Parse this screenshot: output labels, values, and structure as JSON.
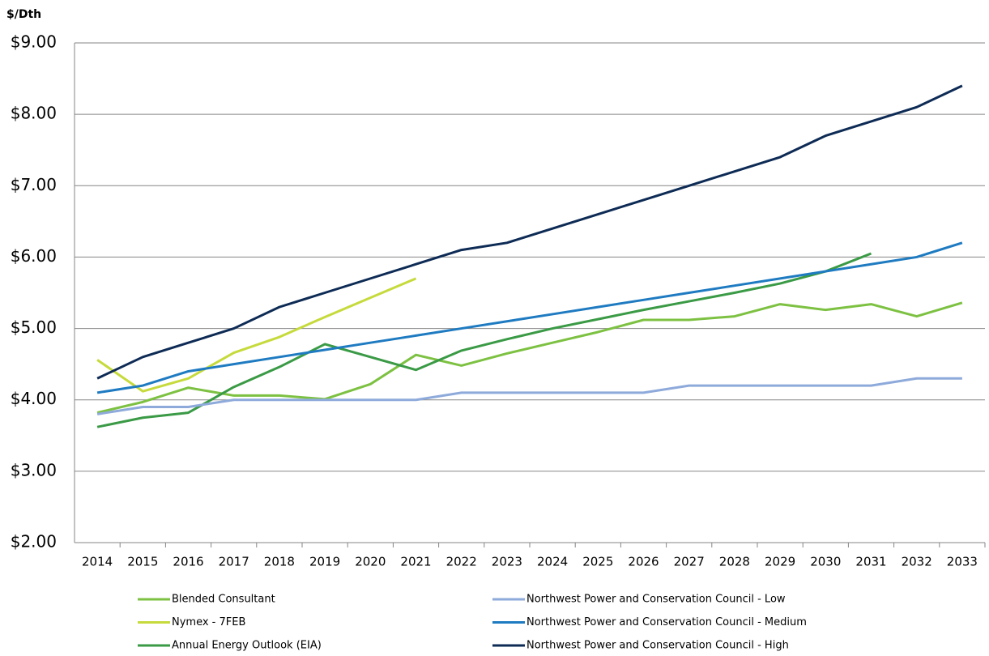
{
  "chart_data": {
    "type": "line",
    "y_label": "$/Dth",
    "categories": [
      "2014",
      "2015",
      "2016",
      "2017",
      "2018",
      "2019",
      "2020",
      "2021",
      "2022",
      "2023",
      "2024",
      "2025",
      "2026",
      "2027",
      "2028",
      "2029",
      "2030",
      "2031",
      "2032",
      "2033"
    ],
    "series": [
      {
        "name": "Blended Consultant",
        "color": "#7dc142",
        "values": [
          3.82,
          3.97,
          4.17,
          4.06,
          4.06,
          4.01,
          4.22,
          4.63,
          4.48,
          4.65,
          4.8,
          4.95,
          5.12,
          5.12,
          5.17,
          5.34,
          5.26,
          5.34,
          5.17,
          5.36
        ]
      },
      {
        "name": "Nymex - 7FEB",
        "color": "#c6da3c",
        "values": [
          4.56,
          4.12,
          4.3,
          4.66,
          4.88,
          5.16,
          5.43,
          5.7,
          null,
          null,
          null,
          null,
          null,
          null,
          null,
          null,
          null,
          null,
          null,
          null
        ]
      },
      {
        "name": "Annual Energy Outlook (EIA)",
        "color": "#3a9a45",
        "values": [
          3.62,
          3.75,
          3.82,
          4.18,
          4.46,
          4.78,
          4.6,
          4.42,
          4.69,
          4.85,
          5.0,
          5.13,
          5.26,
          5.38,
          5.5,
          5.63,
          5.8,
          6.05,
          null,
          null
        ]
      },
      {
        "name": "Northwest Power and Conservation Council - Low",
        "color": "#8eaadb",
        "values": [
          3.8,
          3.9,
          3.9,
          4.0,
          4.0,
          4.0,
          4.0,
          4.0,
          4.1,
          4.1,
          4.1,
          4.1,
          4.1,
          4.2,
          4.2,
          4.2,
          4.2,
          4.2,
          4.3,
          4.3
        ]
      },
      {
        "name": "Northwest Power and Conservation Council - Medium",
        "color": "#1f7bc1",
        "values": [
          4.1,
          4.2,
          4.4,
          4.5,
          4.6,
          4.7,
          4.8,
          4.9,
          5.0,
          5.1,
          5.2,
          5.3,
          5.4,
          5.5,
          5.6,
          5.7,
          5.8,
          5.9,
          6.0,
          6.2
        ]
      },
      {
        "name": "Northwest Power and Conservation Council - High",
        "color": "#0d2b55",
        "values": [
          4.3,
          4.6,
          4.8,
          5.0,
          5.3,
          5.5,
          5.7,
          5.9,
          6.1,
          6.2,
          6.4,
          6.6,
          6.8,
          7.0,
          7.2,
          7.4,
          7.7,
          7.9,
          8.1,
          8.4
        ]
      }
    ],
    "ylim": [
      2,
      9
    ],
    "yticks": [
      {
        "value": 2,
        "label": "$2.00"
      },
      {
        "value": 3,
        "label": "$3.00"
      },
      {
        "value": 4,
        "label": "$4.00"
      },
      {
        "value": 5,
        "label": "$5.00"
      },
      {
        "value": 6,
        "label": "$6.00"
      },
      {
        "value": 7,
        "label": "$7.00"
      },
      {
        "value": 8,
        "label": "$8.00"
      },
      {
        "value": 9,
        "label": "$9.00"
      }
    ],
    "grid": true,
    "legend": "bottom"
  }
}
